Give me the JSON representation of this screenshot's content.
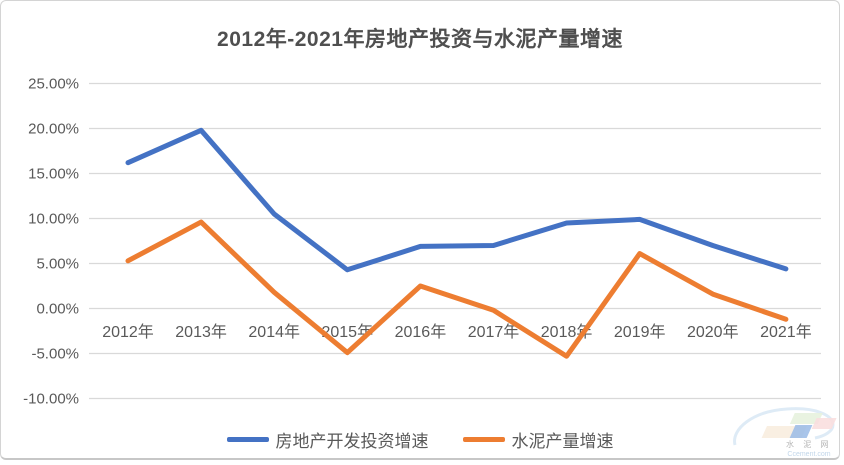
{
  "chart_data": {
    "type": "line",
    "title": "2012年-2021年房地产投资与水泥产量增速",
    "categories": [
      "2012年",
      "2013年",
      "2014年",
      "2015年",
      "2016年",
      "2017年",
      "2018年",
      "2019年",
      "2020年",
      "2021年"
    ],
    "series": [
      {
        "name": "房地产开发投资增速",
        "color": "#4472C4",
        "values": [
          16.2,
          19.8,
          10.5,
          4.3,
          6.9,
          7.0,
          9.5,
          9.9,
          7.0,
          4.4
        ]
      },
      {
        "name": "水泥产量增速",
        "color": "#ED7D31",
        "values": [
          5.3,
          9.6,
          1.8,
          -4.9,
          2.5,
          -0.2,
          -5.3,
          6.1,
          1.6,
          -1.2
        ]
      }
    ],
    "y_axis": {
      "min": -10,
      "max": 25,
      "step": 5,
      "tick_labels": [
        "25.00%",
        "20.00%",
        "15.00%",
        "10.00%",
        "5.00%",
        "0.00%",
        "-5.00%",
        "-10.00%"
      ]
    },
    "grid": true,
    "legend_position": "bottom",
    "colors": {
      "gridline": "#d9d9d9",
      "axis_text": "#595959",
      "title_text": "#4f4f4f"
    }
  },
  "watermark": {
    "name": "水 泥 网",
    "domain": "Ccement.com"
  }
}
